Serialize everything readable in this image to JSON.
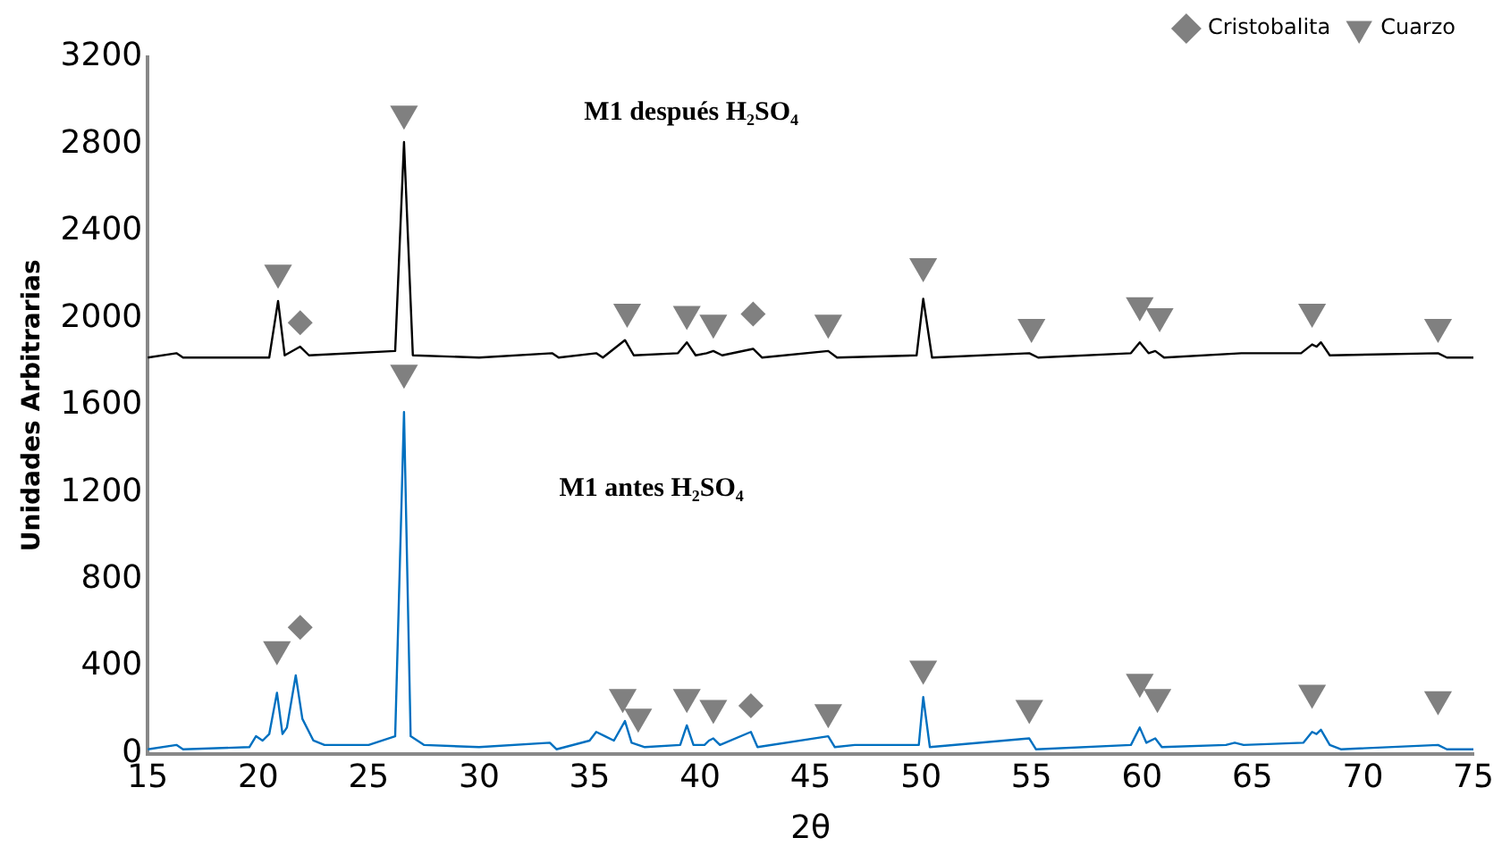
{
  "chart_data": {
    "type": "line",
    "xlabel": "2θ",
    "ylabel": "Unidades Arbitrarias",
    "xlim": [
      15,
      75
    ],
    "xticks": [
      15,
      20,
      25,
      30,
      35,
      40,
      45,
      50,
      55,
      60,
      65,
      70,
      75
    ],
    "ylim": [
      0,
      3200
    ],
    "yticks": [
      0,
      400,
      800,
      1200,
      1600,
      2000,
      2400,
      2800,
      3200
    ],
    "grid": false,
    "legend": "top right",
    "line_style": "solid",
    "annotations": [
      "M1 después H₂SO₄",
      "M1 antes H₂SO₄"
    ],
    "series": [
      {
        "color": "#000000",
        "marker": "none",
        "x": [
          15,
          16.3,
          16.6,
          20.5,
          20.9,
          21.2,
          21.9,
          22.3,
          26.2,
          26.6,
          27.0,
          30,
          33.3,
          33.6,
          35.3,
          35.6,
          36.6,
          37.0,
          39.0,
          39.4,
          39.8,
          40.3,
          40.6,
          41.0,
          42.4,
          42.8,
          45.8,
          46.2,
          49.8,
          50.1,
          50.5,
          54.9,
          55.3,
          59.5,
          59.9,
          60.3,
          60.6,
          61.0,
          64.5,
          67.2,
          67.7,
          67.9,
          68.1,
          68.5,
          73.4,
          73.8,
          75
        ],
        "values": [
          1820,
          1840,
          1820,
          1820,
          2080,
          1830,
          1870,
          1830,
          1850,
          2810,
          1830,
          1820,
          1840,
          1820,
          1840,
          1820,
          1900,
          1830,
          1840,
          1890,
          1830,
          1840,
          1850,
          1830,
          1860,
          1820,
          1850,
          1820,
          1830,
          2090,
          1820,
          1840,
          1820,
          1840,
          1890,
          1840,
          1850,
          1820,
          1840,
          1840,
          1880,
          1870,
          1890,
          1830,
          1840,
          1820,
          1820
        ]
      },
      {
        "color": "#0070c0",
        "marker": "none",
        "x": [
          15,
          16.3,
          16.6,
          19.6,
          19.9,
          20.2,
          20.5,
          20.85,
          21.1,
          21.3,
          21.7,
          22.0,
          22.5,
          23,
          25,
          26.2,
          26.6,
          26.9,
          27.5,
          30,
          33.2,
          33.5,
          35.0,
          35.3,
          35.7,
          36.1,
          36.6,
          36.9,
          37.5,
          39.1,
          39.4,
          39.7,
          40.2,
          40.4,
          40.6,
          40.9,
          42.3,
          42.6,
          45.8,
          46.1,
          47,
          49.9,
          50.1,
          50.4,
          54.9,
          55.2,
          59.5,
          59.9,
          60.2,
          60.6,
          60.9,
          63.8,
          64.2,
          64.6,
          67.3,
          67.7,
          67.9,
          68.1,
          68.5,
          69,
          73.4,
          73.8,
          75
        ],
        "values": [
          20,
          40,
          20,
          30,
          80,
          60,
          90,
          280,
          90,
          120,
          360,
          160,
          60,
          40,
          40,
          80,
          1570,
          80,
          40,
          30,
          50,
          20,
          60,
          100,
          80,
          60,
          150,
          50,
          30,
          40,
          130,
          40,
          40,
          60,
          70,
          40,
          100,
          30,
          80,
          30,
          40,
          40,
          260,
          30,
          70,
          20,
          40,
          120,
          50,
          70,
          30,
          40,
          50,
          40,
          50,
          100,
          90,
          110,
          40,
          20,
          40,
          20,
          20
        ]
      },
      {
        "type": "scatter",
        "name": "Cristobalita",
        "color": "#808080",
        "marker": "diamond",
        "x": [
          21.9,
          42.4,
          21.9,
          42.3
        ],
        "values": [
          1980,
          2020,
          580,
          220
        ]
      },
      {
        "type": "scatter",
        "name": "Cuarzo",
        "color": "#808080",
        "marker": "triangle",
        "x": [
          20.9,
          26.6,
          36.7,
          39.4,
          40.6,
          45.8,
          50.1,
          55,
          59.9,
          60.8,
          67.7,
          73.4,
          26.6,
          20.85,
          36.5,
          37.2,
          39.4,
          40.6,
          45.8,
          50.1,
          54.9,
          59.9,
          60.7,
          67.7,
          73.4
        ],
        "values": [
          2210,
          2940,
          2030,
          2020,
          1980,
          1980,
          2240,
          1960,
          2060,
          2010,
          2030,
          1960,
          1750,
          480,
          260,
          170,
          260,
          210,
          190,
          390,
          210,
          330,
          260,
          280,
          250
        ]
      }
    ]
  }
}
